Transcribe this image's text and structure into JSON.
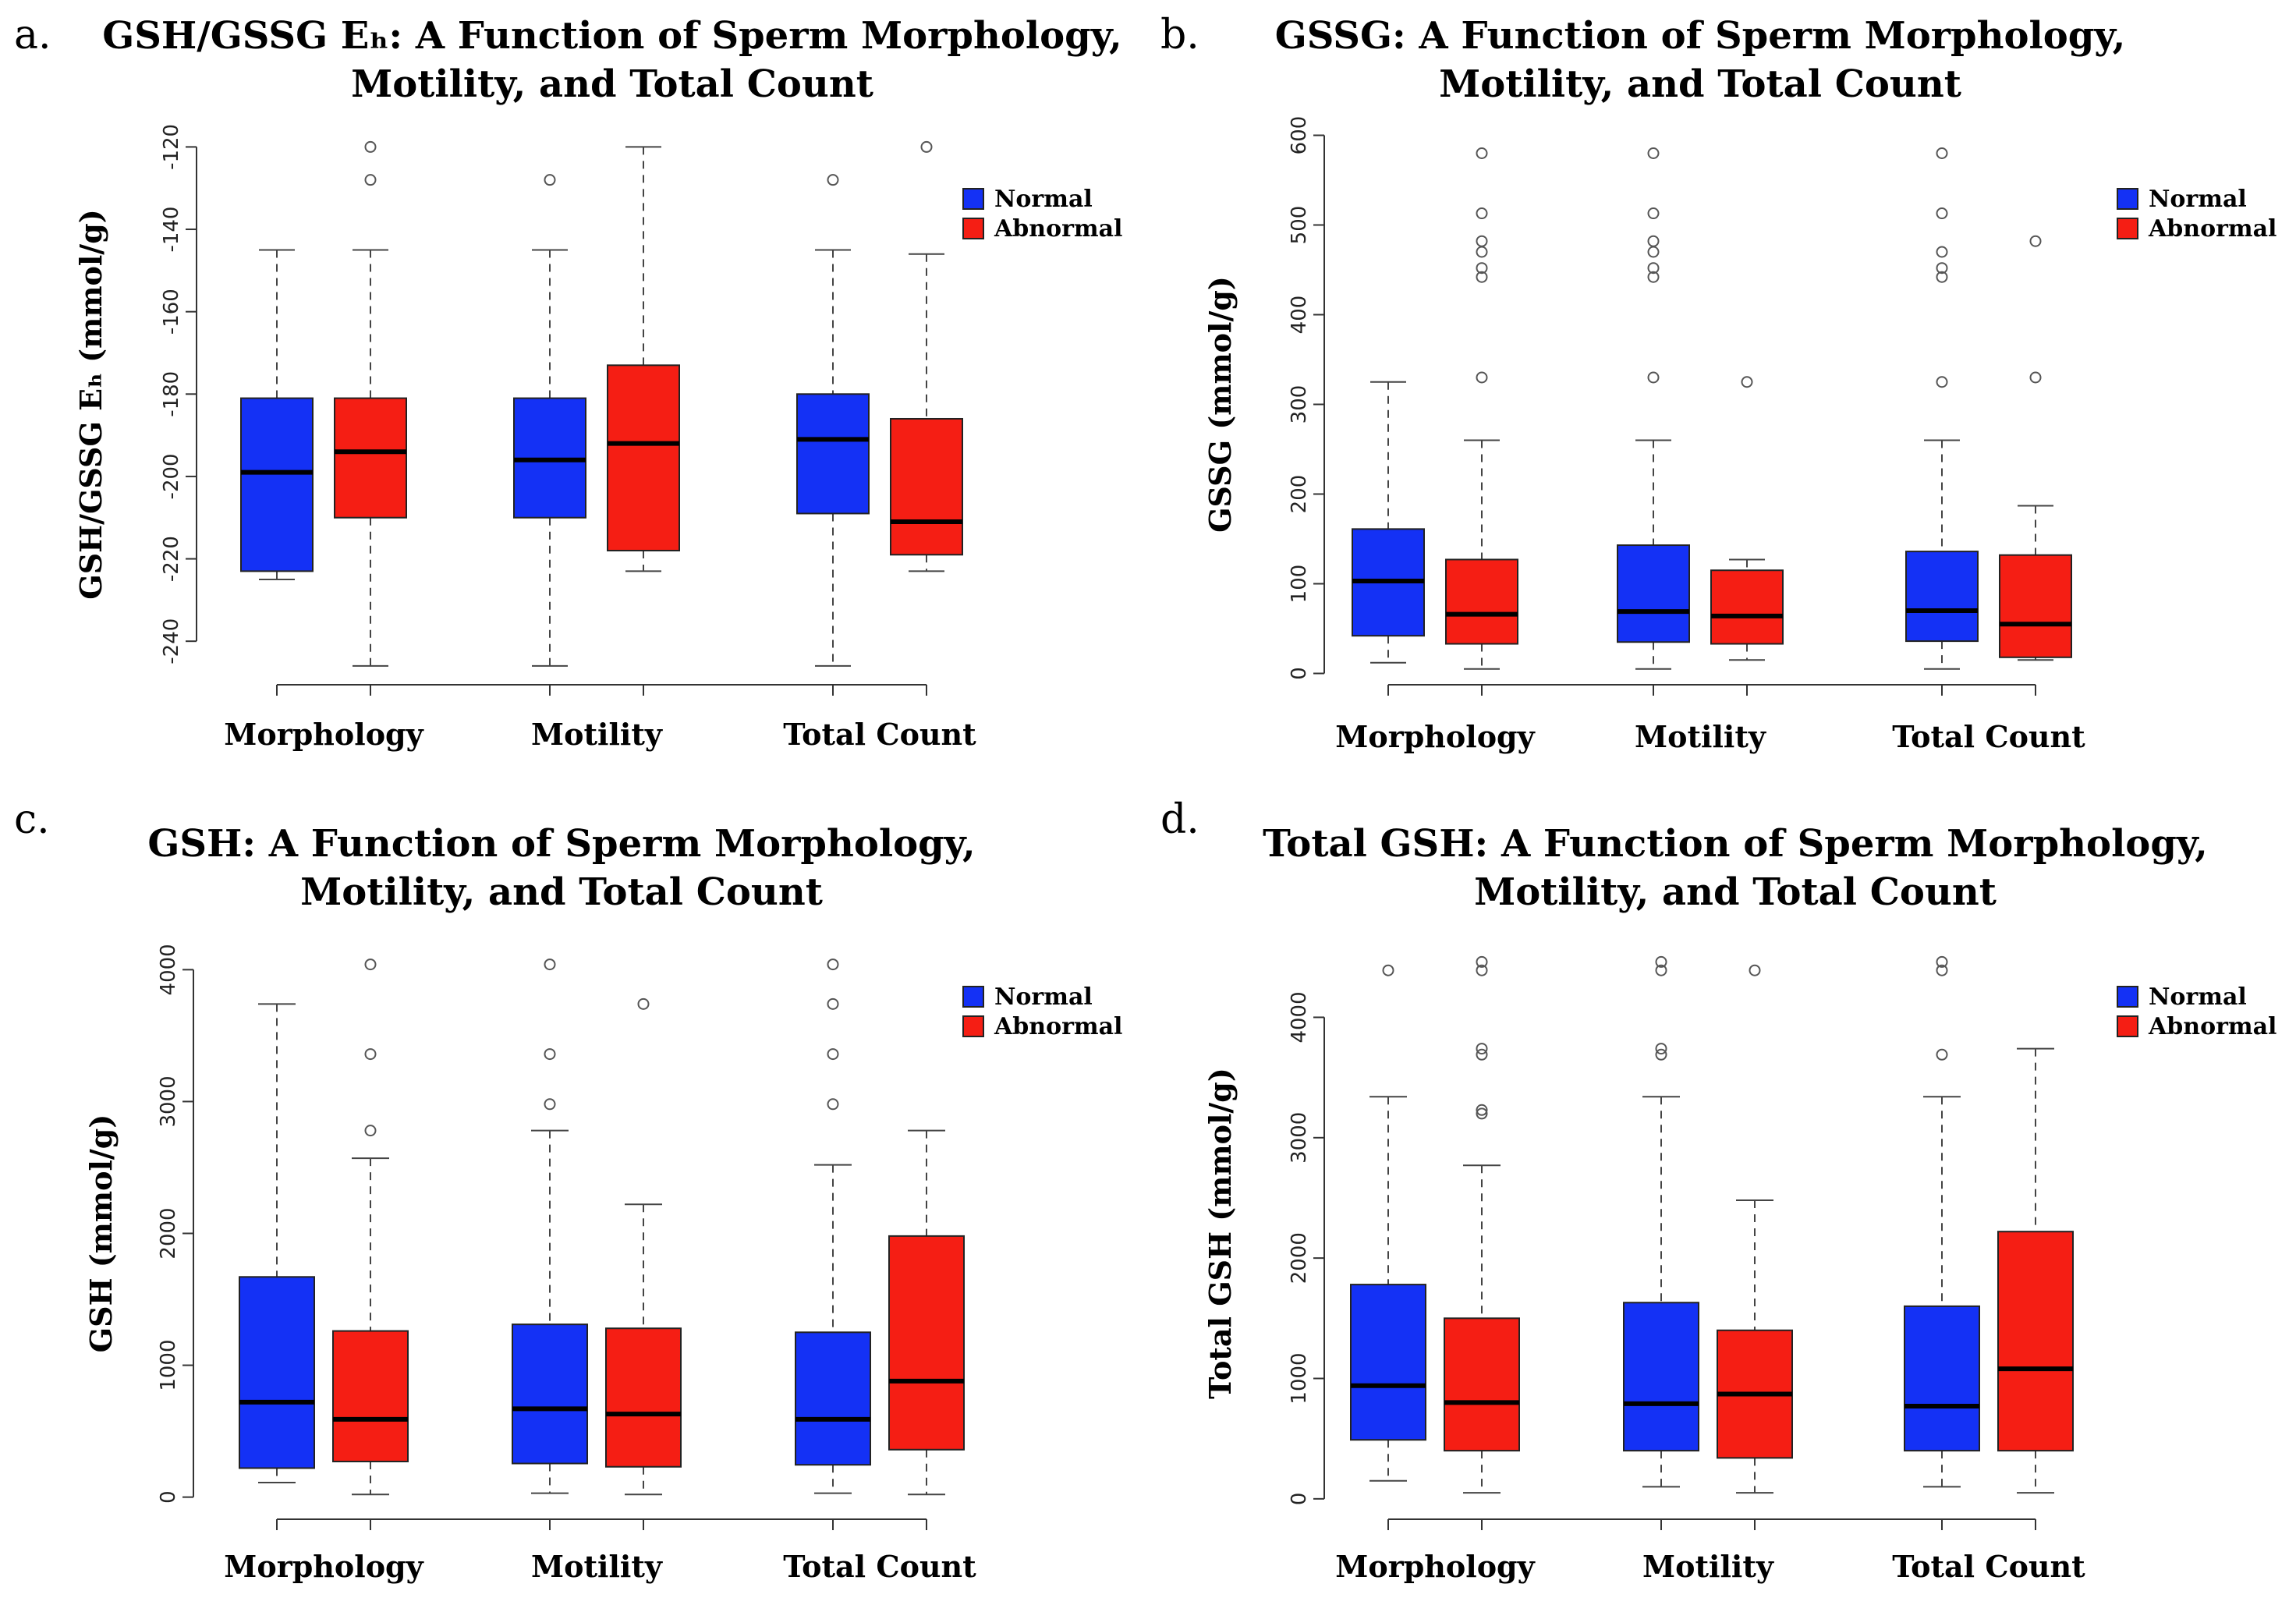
{
  "colors": {
    "normal": "#1431f5",
    "abnormal": "#f51e14"
  },
  "chart_data": [
    {
      "type": "box",
      "panel": "a.",
      "title_lines": [
        "GSH/GSSG Eₕ: A Function of Sperm Morphology,",
        "Motility, and Total Count"
      ],
      "ylabel": "GSH/GSSG Eₕ (mmol/g)",
      "ylim": [
        -250,
        -115
      ],
      "yticks": [
        -240,
        -220,
        -200,
        -180,
        -160,
        -140,
        -120
      ],
      "categories": [
        "Morphology",
        "Motility",
        "Total Count"
      ],
      "legend": [
        "Normal",
        "Abnormal"
      ],
      "series": [
        {
          "name": "Normal",
          "boxes": [
            {
              "low": -225,
              "q1": -223,
              "median": -199,
              "q3": -181,
              "high": -145,
              "outliers": []
            },
            {
              "low": -246,
              "q1": -210,
              "median": -196,
              "q3": -181,
              "high": -145,
              "outliers": [
                -128
              ]
            },
            {
              "low": -246,
              "q1": -209,
              "median": -191,
              "q3": -180,
              "high": -145,
              "outliers": [
                -128
              ]
            }
          ]
        },
        {
          "name": "Abnormal",
          "boxes": [
            {
              "low": -246,
              "q1": -210,
              "median": -194,
              "q3": -181,
              "high": -145,
              "outliers": [
                -120,
                -128
              ]
            },
            {
              "low": -223,
              "q1": -218,
              "median": -192,
              "q3": -173,
              "high": -120,
              "outliers": []
            },
            {
              "low": -223,
              "q1": -219,
              "median": -211,
              "q3": -186,
              "high": -146,
              "outliers": [
                -120
              ]
            }
          ]
        }
      ]
    },
    {
      "type": "box",
      "panel": "b.",
      "title_lines": [
        "GSSG: A Function of Sperm Morphology,",
        "Motility, and Total Count"
      ],
      "ylabel": "GSSG (mmol/g)",
      "ylim": [
        -10,
        610
      ],
      "yticks": [
        0,
        100,
        200,
        300,
        400,
        500,
        600
      ],
      "categories": [
        "Morphology",
        "Motility",
        "Total Count"
      ],
      "legend": [
        "Normal",
        "Abnormal"
      ],
      "series": [
        {
          "name": "Normal",
          "boxes": [
            {
              "low": 12,
              "q1": 42,
              "median": 103,
              "q3": 161,
              "high": 325,
              "outliers": []
            },
            {
              "low": 5,
              "q1": 35,
              "median": 69,
              "q3": 143,
              "high": 260,
              "outliers": [
                330,
                442,
                452,
                470,
                482,
                513,
                580
              ]
            },
            {
              "low": 5,
              "q1": 36,
              "median": 70,
              "q3": 136,
              "high": 260,
              "outliers": [
                325,
                442,
                452,
                470,
                513,
                580
              ]
            }
          ]
        },
        {
          "name": "Abnormal",
          "boxes": [
            {
              "low": 5,
              "q1": 33,
              "median": 66,
              "q3": 127,
              "high": 260,
              "outliers": [
                330,
                442,
                452,
                470,
                482,
                513,
                580
              ]
            },
            {
              "low": 15,
              "q1": 33,
              "median": 64,
              "q3": 115,
              "high": 127,
              "outliers": [
                325
              ]
            },
            {
              "low": 15,
              "q1": 18,
              "median": 55,
              "q3": 132,
              "high": 187,
              "outliers": [
                330,
                482
              ]
            }
          ]
        }
      ]
    },
    {
      "type": "box",
      "panel": "c.",
      "title_lines": [
        "GSH: A Function of Sperm Morphology,",
        "Motility, and Total Count"
      ],
      "ylabel": "GSH (mmol/g)",
      "ylim": [
        -150,
        4150
      ],
      "yticks": [
        0,
        1000,
        2000,
        3000,
        4000
      ],
      "categories": [
        "Morphology",
        "Motility",
        "Total Count"
      ],
      "legend": [
        "Normal",
        "Abnormal"
      ],
      "series": [
        {
          "name": "Normal",
          "boxes": [
            {
              "low": 110,
              "q1": 220,
              "median": 720,
              "q3": 1670,
              "high": 3740,
              "outliers": []
            },
            {
              "low": 30,
              "q1": 255,
              "median": 670,
              "q3": 1310,
              "high": 2780,
              "outliers": [
                2980,
                3360,
                4040
              ]
            },
            {
              "low": 30,
              "q1": 245,
              "median": 590,
              "q3": 1250,
              "high": 2520,
              "outliers": [
                2980,
                3360,
                3740,
                4040
              ]
            }
          ]
        },
        {
          "name": "Abnormal",
          "boxes": [
            {
              "low": 20,
              "q1": 270,
              "median": 590,
              "q3": 1260,
              "high": 2570,
              "outliers": [
                2780,
                3360,
                4040
              ]
            },
            {
              "low": 20,
              "q1": 230,
              "median": 630,
              "q3": 1280,
              "high": 2220,
              "outliers": [
                3740
              ]
            },
            {
              "low": 20,
              "q1": 360,
              "median": 880,
              "q3": 1980,
              "high": 2780,
              "outliers": []
            }
          ]
        }
      ]
    },
    {
      "type": "box",
      "panel": "d.",
      "title_lines": [
        "Total GSH: A Function of Sperm Morphology,",
        "Motility, and Total Count"
      ],
      "ylabel": "Total GSH (mmol/g)",
      "ylim": [
        -150,
        4560
      ],
      "yticks": [
        0,
        1000,
        2000,
        3000,
        4000
      ],
      "categories": [
        "Morphology",
        "Motility",
        "Total Count"
      ],
      "legend": [
        "Normal",
        "Abnormal"
      ],
      "series": [
        {
          "name": "Normal",
          "boxes": [
            {
              "low": 150,
              "q1": 490,
              "median": 940,
              "q3": 1780,
              "high": 3340,
              "outliers": [
                4390
              ]
            },
            {
              "low": 100,
              "q1": 400,
              "median": 790,
              "q3": 1630,
              "high": 3340,
              "outliers": [
                3690,
                3740,
                4390,
                4460
              ]
            },
            {
              "low": 100,
              "q1": 400,
              "median": 770,
              "q3": 1600,
              "high": 3340,
              "outliers": [
                3690,
                4390,
                4460
              ]
            }
          ]
        },
        {
          "name": "Abnormal",
          "boxes": [
            {
              "low": 50,
              "q1": 400,
              "median": 800,
              "q3": 1500,
              "high": 2770,
              "outliers": [
                3200,
                3230,
                3690,
                3740,
                4390,
                4460
              ]
            },
            {
              "low": 50,
              "q1": 340,
              "median": 870,
              "q3": 1400,
              "high": 2480,
              "outliers": [
                4390
              ]
            },
            {
              "low": 50,
              "q1": 400,
              "median": 1080,
              "q3": 2220,
              "high": 3740,
              "outliers": []
            }
          ]
        }
      ]
    }
  ]
}
